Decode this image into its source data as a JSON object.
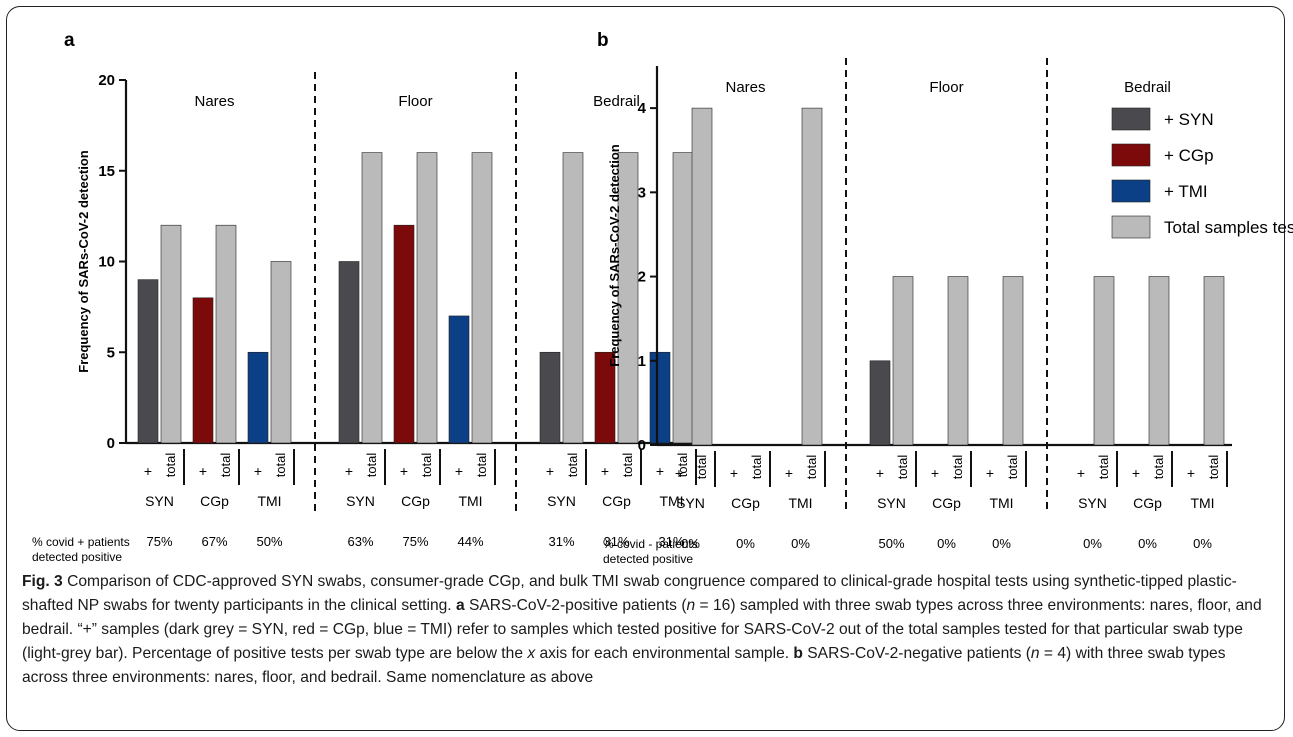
{
  "chart_data": [
    {
      "panel": "a",
      "type": "bar",
      "ylabel": "Frequency of SARs-CoV-2 detection",
      "ylim": [
        0,
        20
      ],
      "yticks": [
        0,
        5,
        10,
        15,
        20
      ],
      "groups": [
        "Nares",
        "Floor",
        "Bedrail"
      ],
      "swab_types": [
        "SYN",
        "CGp",
        "TMI"
      ],
      "bar_labels": [
        "+",
        "total"
      ],
      "positive": [
        [
          9,
          8,
          5
        ],
        [
          10,
          12,
          7
        ],
        [
          5,
          5,
          5
        ]
      ],
      "total": [
        [
          12,
          12,
          10
        ],
        [
          16,
          16,
          16
        ],
        [
          16,
          16,
          16
        ]
      ],
      "percent_label": [
        "% covid + patients",
        "detected positive"
      ],
      "percents": [
        [
          "75%",
          "67%",
          "50%"
        ],
        [
          "63%",
          "75%",
          "44%"
        ],
        [
          "31%",
          "31%",
          "31%"
        ]
      ]
    },
    {
      "panel": "b",
      "type": "bar",
      "ylabel": "Frequency of SARs-CoV-2 detection",
      "ylim": [
        0,
        4.5
      ],
      "yticks": [
        0,
        1,
        2,
        3,
        4
      ],
      "groups": [
        "Nares",
        "Floor",
        "Bedrail"
      ],
      "swab_types": [
        "SYN",
        "CGp",
        "TMI"
      ],
      "bar_labels": [
        "+",
        "total"
      ],
      "positive": [
        [
          0,
          0,
          0
        ],
        [
          1,
          0,
          0
        ],
        [
          0,
          0,
          0
        ]
      ],
      "total": [
        [
          4,
          0,
          4
        ],
        [
          2,
          2,
          2
        ],
        [
          2,
          2,
          2
        ]
      ],
      "percent_label": [
        "% covid - patients",
        "detected positive"
      ],
      "percents": [
        [
          "0%",
          "0%",
          "0%"
        ],
        [
          "50%",
          "0%",
          "0%"
        ],
        [
          "0%",
          "0%",
          "0%"
        ]
      ]
    }
  ],
  "legend": [
    {
      "label": "+ SYN",
      "color": "#4a4a4e"
    },
    {
      "label": "+ CGp",
      "color": "#7d0a0a"
    },
    {
      "label": "+ TMI",
      "color": "#0b3f86"
    },
    {
      "label": "Total samples tested",
      "color": "#bababa"
    }
  ],
  "colors": {
    "total": "#bababa",
    "SYN": "#4a4a4e",
    "CGp": "#7d0a0a",
    "TMI": "#0b3f86"
  },
  "caption": {
    "fig_label": "Fig. 3",
    "text1": " Comparison of CDC-approved SYN swabs, consumer-grade CGp, and bulk TMI swab congruence compared to clinical-grade hospital tests using synthetic-tipped plastic-shafted NP swabs for twenty participants in the clinical setting. ",
    "a_label": "a",
    "text2": " SARS-CoV-2-positive patients (",
    "n": "n",
    "text3": " = 16) sampled with three swab types across three environments: nares, floor, and bedrail. “+” samples (dark grey = SYN, red = CGp, blue = TMI) refer to samples which tested positive for SARS-CoV-2 out of the total samples tested for that particular swab type (light-grey bar). Percentage of positive tests per swab type are below the ",
    "x": "x",
    "text4": " axis for each environmental sample. ",
    "b_label": "b",
    "text5": " SARS-CoV-2-negative patients (",
    "n2": "n",
    "text6": " = 4) with three swab types across three environments: nares, floor, and bedrail. Same nomenclature as above"
  }
}
